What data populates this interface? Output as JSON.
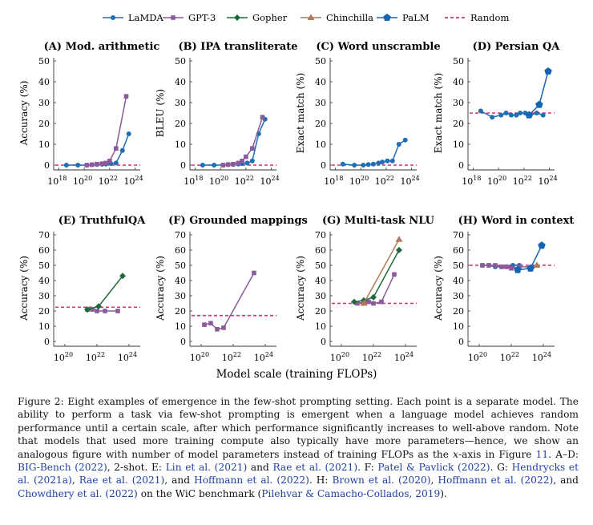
{
  "legend": {
    "items": [
      {
        "name": "LaMDA",
        "color": "#1f6fb4",
        "marker": "circle"
      },
      {
        "name": "GPT-3",
        "color": "#8b5a9b",
        "marker": "square"
      },
      {
        "name": "Gopher",
        "color": "#1e6b3a",
        "marker": "diamond"
      },
      {
        "name": "Chinchilla",
        "color": "#b07a5a",
        "marker": "triangle"
      },
      {
        "name": "PaLM",
        "color": "#1464b4",
        "marker": "pentagon"
      },
      {
        "name": "Random",
        "color": "#d6336c",
        "marker": "dashed"
      }
    ]
  },
  "x_axis_label": "Model scale (training FLOPs)",
  "chart_data": [
    {
      "type": "line",
      "title": "(A) Mod. arithmetic",
      "ylabel": "Accuracy (%)",
      "ylim": [
        0,
        50
      ],
      "yticks": [
        0,
        10,
        20,
        30,
        40,
        50
      ],
      "xlim": [
        17.6,
        24.4
      ],
      "xticks": [
        18,
        20,
        22,
        24
      ],
      "xtick_labels": [
        "10",
        "10",
        "10",
        "10"
      ],
      "xtick_exps": [
        "18",
        "20",
        "22",
        "24"
      ],
      "random": 0,
      "series": [
        {
          "name": "LaMDA",
          "x": [
            18.6,
            19.5,
            20.2,
            20.6,
            21.0,
            21.4,
            21.7,
            22.1,
            22.5,
            23.0,
            23.5
          ],
          "y": [
            0,
            0,
            0,
            0.2,
            0.3,
            0.4,
            0.5,
            0.7,
            1,
            7,
            15
          ]
        },
        {
          "name": "GPT-3",
          "x": [
            20.2,
            20.6,
            21.0,
            21.4,
            21.7,
            22.0,
            22.5,
            23.3
          ],
          "y": [
            0,
            0.2,
            0.5,
            0.7,
            1,
            2,
            8,
            33
          ]
        }
      ]
    },
    {
      "type": "line",
      "title": "(B) IPA transliterate",
      "ylabel": "BLEU (%)",
      "ylim": [
        0,
        50
      ],
      "yticks": [
        0,
        10,
        20,
        30,
        40,
        50
      ],
      "xlim": [
        17.6,
        24.4
      ],
      "xticks": [
        18,
        20,
        22,
        24
      ],
      "xtick_labels": [
        "10",
        "10",
        "10",
        "10"
      ],
      "xtick_exps": [
        "18",
        "20",
        "22",
        "24"
      ],
      "random": 0,
      "series": [
        {
          "name": "LaMDA",
          "x": [
            18.6,
            19.5,
            20.2,
            20.6,
            21.0,
            21.4,
            21.7,
            22.1,
            22.5,
            23.0,
            23.5
          ],
          "y": [
            0,
            0,
            0,
            0.2,
            0.3,
            0.5,
            0.7,
            1,
            2,
            15,
            22
          ]
        },
        {
          "name": "GPT-3",
          "x": [
            20.2,
            20.6,
            21.0,
            21.4,
            21.7,
            22.0,
            22.5,
            23.3
          ],
          "y": [
            0,
            0.3,
            0.5,
            1,
            2,
            4,
            8,
            23
          ]
        }
      ]
    },
    {
      "type": "line",
      "title": "(C) Word unscramble",
      "ylabel": "Exact match (%)",
      "ylim": [
        0,
        50
      ],
      "yticks": [
        0,
        10,
        20,
        30,
        40,
        50
      ],
      "xlim": [
        17.6,
        24.4
      ],
      "xticks": [
        18,
        20,
        22,
        24
      ],
      "xtick_labels": [
        "10",
        "10",
        "10",
        "10"
      ],
      "xtick_exps": [
        "18",
        "20",
        "22",
        "24"
      ],
      "random": 0,
      "series": [
        {
          "name": "LaMDA",
          "x": [
            18.6,
            19.5,
            20.2,
            20.6,
            21.0,
            21.4,
            21.7,
            22.1,
            22.5,
            23.0,
            23.5
          ],
          "y": [
            0.5,
            0,
            0,
            0.3,
            0.5,
            1,
            1.5,
            2,
            2,
            10,
            12
          ]
        }
      ]
    },
    {
      "type": "line",
      "title": "(D) Persian QA",
      "ylabel": "Exact match (%)",
      "ylim": [
        0,
        50
      ],
      "yticks": [
        0,
        10,
        20,
        30,
        40,
        50
      ],
      "xlim": [
        17.6,
        24.4
      ],
      "xticks": [
        18,
        20,
        22,
        24
      ],
      "xtick_labels": [
        "10",
        "10",
        "10",
        "10"
      ],
      "xtick_exps": [
        "18",
        "20",
        "22",
        "24"
      ],
      "random": 25,
      "series": [
        {
          "name": "LaMDA",
          "x": [
            18.6,
            19.5,
            20.2,
            20.6,
            21.0,
            21.4,
            21.7,
            22.1,
            22.5,
            23.0,
            23.5
          ],
          "y": [
            26,
            23,
            24,
            25,
            24,
            24,
            25,
            25,
            24,
            25,
            24
          ]
        },
        {
          "name": "PaLM",
          "x": [
            22.4,
            23.2,
            23.9
          ],
          "y": [
            24,
            29,
            45
          ]
        }
      ]
    },
    {
      "type": "line",
      "title": "(E) TruthfulQA",
      "ylabel": "Accuracy (%)",
      "ylim": [
        0,
        70
      ],
      "yticks": [
        0,
        10,
        20,
        30,
        40,
        50,
        60,
        70
      ],
      "xlim": [
        19.3,
        24.7
      ],
      "xticks": [
        20,
        22,
        24
      ],
      "xtick_labels": [
        "10",
        "10",
        "10"
      ],
      "xtick_exps": [
        "20",
        "22",
        "24"
      ],
      "random": 22.5,
      "series": [
        {
          "name": "GPT-3",
          "x": [
            21.4,
            21.7,
            22.0,
            22.5,
            23.3
          ],
          "y": [
            21,
            21,
            20,
            20,
            20
          ]
        },
        {
          "name": "Gopher",
          "x": [
            21.4,
            22.1,
            23.6
          ],
          "y": [
            21,
            23,
            43
          ]
        }
      ]
    },
    {
      "type": "line",
      "title": "(F) Grounded mappings",
      "ylabel": "Accuracy (%)",
      "ylim": [
        0,
        70
      ],
      "yticks": [
        0,
        10,
        20,
        30,
        40,
        50,
        60,
        70
      ],
      "xlim": [
        19.3,
        24.7
      ],
      "xticks": [
        20,
        22,
        24
      ],
      "xtick_labels": [
        "10",
        "10",
        "10"
      ],
      "xtick_exps": [
        "20",
        "22",
        "24"
      ],
      "random": 17,
      "series": [
        {
          "name": "GPT-3",
          "x": [
            20.2,
            20.6,
            21.0,
            21.4,
            23.3
          ],
          "y": [
            11,
            12,
            8,
            9,
            45
          ]
        }
      ]
    },
    {
      "type": "line",
      "title": "(G) Multi-task NLU",
      "ylabel": "Accuracy (%)",
      "ylim": [
        0,
        70
      ],
      "yticks": [
        0,
        10,
        20,
        30,
        40,
        50,
        60,
        70
      ],
      "xlim": [
        19.3,
        24.7
      ],
      "xticks": [
        20,
        22,
        24
      ],
      "xtick_labels": [
        "10",
        "10",
        "10"
      ],
      "xtick_exps": [
        "20",
        "22",
        "24"
      ],
      "random": 25,
      "series": [
        {
          "name": "GPT-3",
          "x": [
            21.0,
            21.4,
            21.7,
            22.0,
            22.5,
            23.3
          ],
          "y": [
            25,
            26,
            26,
            25,
            26,
            44
          ]
        },
        {
          "name": "Gopher",
          "x": [
            20.8,
            21.4,
            22.0,
            23.6
          ],
          "y": [
            26,
            27,
            29,
            60
          ]
        },
        {
          "name": "Chinchilla",
          "x": [
            21.4,
            23.6
          ],
          "y": [
            25,
            67
          ]
        }
      ]
    },
    {
      "type": "line",
      "title": "(H) Word in context",
      "ylabel": "Accuracy (%)",
      "ylim": [
        0,
        70
      ],
      "yticks": [
        0,
        10,
        20,
        30,
        40,
        50,
        60,
        70
      ],
      "xlim": [
        19.3,
        24.7
      ],
      "xticks": [
        20,
        22,
        24
      ],
      "xtick_labels": [
        "10",
        "10",
        "10"
      ],
      "xtick_exps": [
        "20",
        "22",
        "24"
      ],
      "random": 50,
      "series": [
        {
          "name": "LaMDA",
          "x": [
            20.2,
            20.6,
            21.0,
            21.4,
            21.7,
            22.1,
            22.5
          ],
          "y": [
            50,
            50,
            49,
            49,
            49,
            50,
            50
          ]
        },
        {
          "name": "GPT-3",
          "x": [
            20.2,
            20.6,
            21.0,
            21.4,
            21.7,
            22.0,
            22.5,
            23.3
          ],
          "y": [
            50,
            50,
            50,
            49,
            49,
            48,
            49,
            49
          ]
        },
        {
          "name": "Chinchilla",
          "x": [
            23.6
          ],
          "y": [
            50
          ]
        },
        {
          "name": "PaLM",
          "x": [
            22.4,
            23.2,
            23.9
          ],
          "y": [
            47,
            48,
            63
          ]
        }
      ]
    }
  ],
  "caption": {
    "t1": "Figure 2: Eight examples of emergence in the few-shot prompting setting. Each point is a separate model. The ability to perform a task via few-shot prompting is emergent when a language model achieves random performance until a certain scale, after which performance significantly increases to well-above random. Note that models that used more training compute also typically have more parameters—hence, we show an analogous figure with number of model parameters instead of training FLOPs as the ",
    "x": "x",
    "t2": "-axis in Figure ",
    "fig11": "11",
    "t3": ". A–D: ",
    "c_bigbench": "BIG-Bench (2022)",
    "t4": ", 2-shot. E: ",
    "c_lin": "Lin et al. (2021)",
    "t5": " and ",
    "c_rae1": "Rae et al. (2021)",
    "t6": ". F: ",
    "c_patel": "Patel & Pavlick (2022)",
    "t7": ". G: ",
    "c_hendrycks": "Hendrycks et al. (2021a)",
    "t8": ", ",
    "c_rae2": "Rae et al. (2021)",
    "t9": ", and ",
    "c_hoff1": "Hoffmann et al. (2022)",
    "t10": ". H: ",
    "c_brown": "Brown et al. (2020)",
    "t11": ", ",
    "c_hoff2": "Hoffmann et al. (2022)",
    "t12": ", and ",
    "c_chowdhery": "Chowdhery et al. (2022)",
    "t13": " on the WiC benchmark (",
    "c_pilehvar": "Pilehvar & Camacho-Collados, 2019",
    "t14": ")."
  }
}
